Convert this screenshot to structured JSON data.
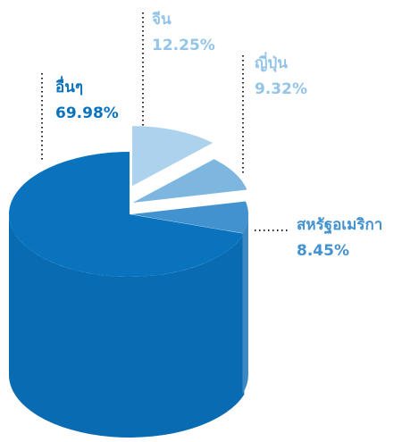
{
  "chart_data": {
    "type": "pie",
    "categories": [
      "อื่นๆ",
      "จีน",
      "ญี่ปุ่น",
      "สหรัฐอเมริกา"
    ],
    "values": [
      69.98,
      12.25,
      9.32,
      8.45
    ],
    "value_labels": [
      "69.98%",
      "12.25%",
      "9.32%",
      "8.45%"
    ],
    "colors": [
      "#0a73be",
      "#acd2ee",
      "#7db6df",
      "#4392d0"
    ]
  }
}
